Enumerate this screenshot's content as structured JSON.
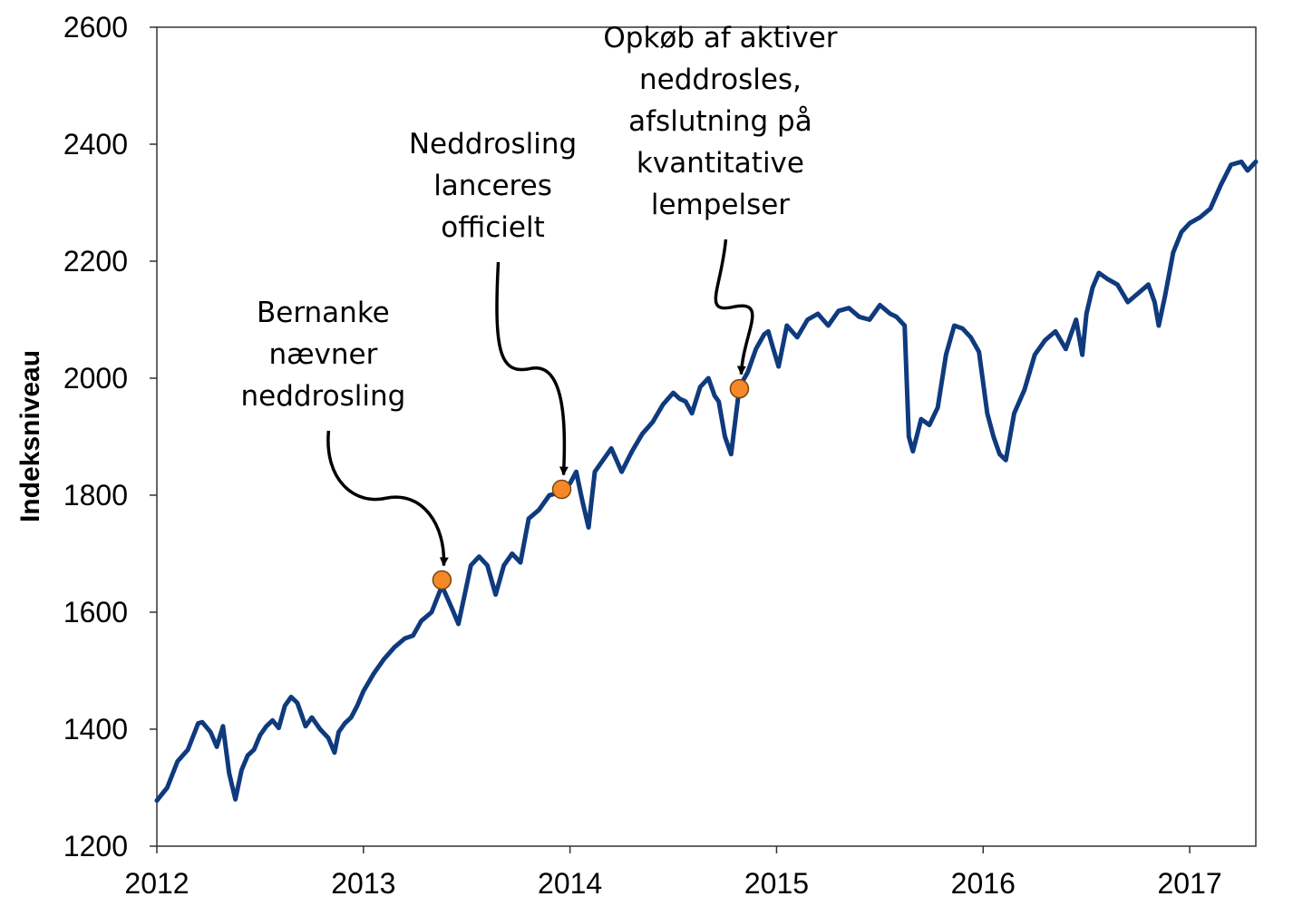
{
  "chart_data": {
    "type": "line",
    "title": "",
    "xlabel": "",
    "ylabel": "Indeksniveau",
    "xlim": [
      2012,
      2017.32
    ],
    "ylim": [
      1200,
      2600
    ],
    "yticks": [
      1200,
      1400,
      1600,
      1800,
      2000,
      2200,
      2400,
      2600
    ],
    "xticks": [
      2012,
      2013,
      2014,
      2015,
      2016,
      2017
    ],
    "grid": false,
    "legend": "none",
    "series": [
      {
        "color": "#0f3a7e",
        "x": [
          2012.0,
          2012.05,
          2012.1,
          2012.15,
          2012.2,
          2012.22,
          2012.26,
          2012.29,
          2012.32,
          2012.35,
          2012.38,
          2012.41,
          2012.44,
          2012.47,
          2012.5,
          2012.53,
          2012.56,
          2012.59,
          2012.62,
          2012.65,
          2012.68,
          2012.7,
          2012.72,
          2012.75,
          2012.79,
          2012.83,
          2012.86,
          2012.88,
          2012.91,
          2012.94,
          2012.97,
          2013.0,
          2013.05,
          2013.1,
          2013.15,
          2013.2,
          2013.24,
          2013.28,
          2013.33,
          2013.38,
          2013.43,
          2013.46,
          2013.49,
          2013.52,
          2013.56,
          2013.6,
          2013.64,
          2013.68,
          2013.72,
          2013.76,
          2013.8,
          2013.85,
          2013.9,
          2013.96,
          2014.0,
          2014.03,
          2014.06,
          2014.09,
          2014.12,
          2014.15,
          2014.2,
          2014.25,
          2014.3,
          2014.35,
          2014.4,
          2014.45,
          2014.5,
          2014.53,
          2014.56,
          2014.59,
          2014.63,
          2014.67,
          2014.7,
          2014.72,
          2014.75,
          2014.78,
          2014.82,
          2014.86,
          2014.9,
          2014.94,
          2014.96,
          2014.98,
          2015.01,
          2015.05,
          2015.1,
          2015.15,
          2015.2,
          2015.25,
          2015.3,
          2015.35,
          2015.4,
          2015.45,
          2015.5,
          2015.55,
          2015.58,
          2015.62,
          2015.64,
          2015.66,
          2015.7,
          2015.74,
          2015.78,
          2015.82,
          2015.86,
          2015.9,
          2015.94,
          2015.98,
          2016.02,
          2016.05,
          2016.08,
          2016.11,
          2016.15,
          2016.2,
          2016.25,
          2016.3,
          2016.35,
          2016.4,
          2016.45,
          2016.48,
          2016.5,
          2016.53,
          2016.56,
          2016.6,
          2016.65,
          2016.7,
          2016.75,
          2016.8,
          2016.83,
          2016.85,
          2016.88,
          2016.92,
          2016.96,
          2017.0,
          2017.05,
          2017.1,
          2017.15,
          2017.2,
          2017.25,
          2017.28,
          2017.32
        ],
        "y": [
          1278,
          1300,
          1345,
          1365,
          1410,
          1412,
          1395,
          1370,
          1405,
          1325,
          1280,
          1330,
          1355,
          1365,
          1390,
          1405,
          1415,
          1402,
          1440,
          1455,
          1445,
          1425,
          1405,
          1420,
          1400,
          1385,
          1360,
          1395,
          1410,
          1420,
          1440,
          1465,
          1495,
          1520,
          1540,
          1555,
          1560,
          1585,
          1600,
          1645,
          1605,
          1580,
          1630,
          1680,
          1695,
          1680,
          1630,
          1680,
          1700,
          1685,
          1760,
          1775,
          1800,
          1805,
          1820,
          1840,
          1790,
          1745,
          1840,
          1855,
          1880,
          1840,
          1875,
          1905,
          1925,
          1955,
          1975,
          1965,
          1960,
          1940,
          1985,
          2000,
          1970,
          1960,
          1900,
          1870,
          1985,
          2010,
          2050,
          2075,
          2080,
          2055,
          2020,
          2090,
          2070,
          2100,
          2110,
          2090,
          2115,
          2120,
          2105,
          2100,
          2125,
          2110,
          2105,
          2090,
          1900,
          1875,
          1930,
          1920,
          1950,
          2040,
          2090,
          2085,
          2070,
          2045,
          1940,
          1900,
          1870,
          1860,
          1940,
          1980,
          2040,
          2065,
          2080,
          2050,
          2100,
          2040,
          2110,
          2155,
          2180,
          2170,
          2160,
          2130,
          2145,
          2160,
          2130,
          2090,
          2140,
          2215,
          2250,
          2265,
          2275,
          2290,
          2330,
          2365,
          2370,
          2355,
          2370
        ]
      }
    ],
    "annotations": [
      {
        "x": 2013.38,
        "y": 1655,
        "lines": [
          "Bernanke",
          "nævner",
          "neddrosling"
        ]
      },
      {
        "x": 2013.96,
        "y": 1810,
        "lines": [
          "Neddrosling",
          "lanceres",
          "officielt"
        ]
      },
      {
        "x": 2014.82,
        "y": 1982,
        "lines": [
          "Opkøb af aktiver",
          "neddrosles,",
          "afslutning på",
          "kvantitative",
          "lempelser"
        ]
      }
    ],
    "marker_color": "#f5892a"
  }
}
